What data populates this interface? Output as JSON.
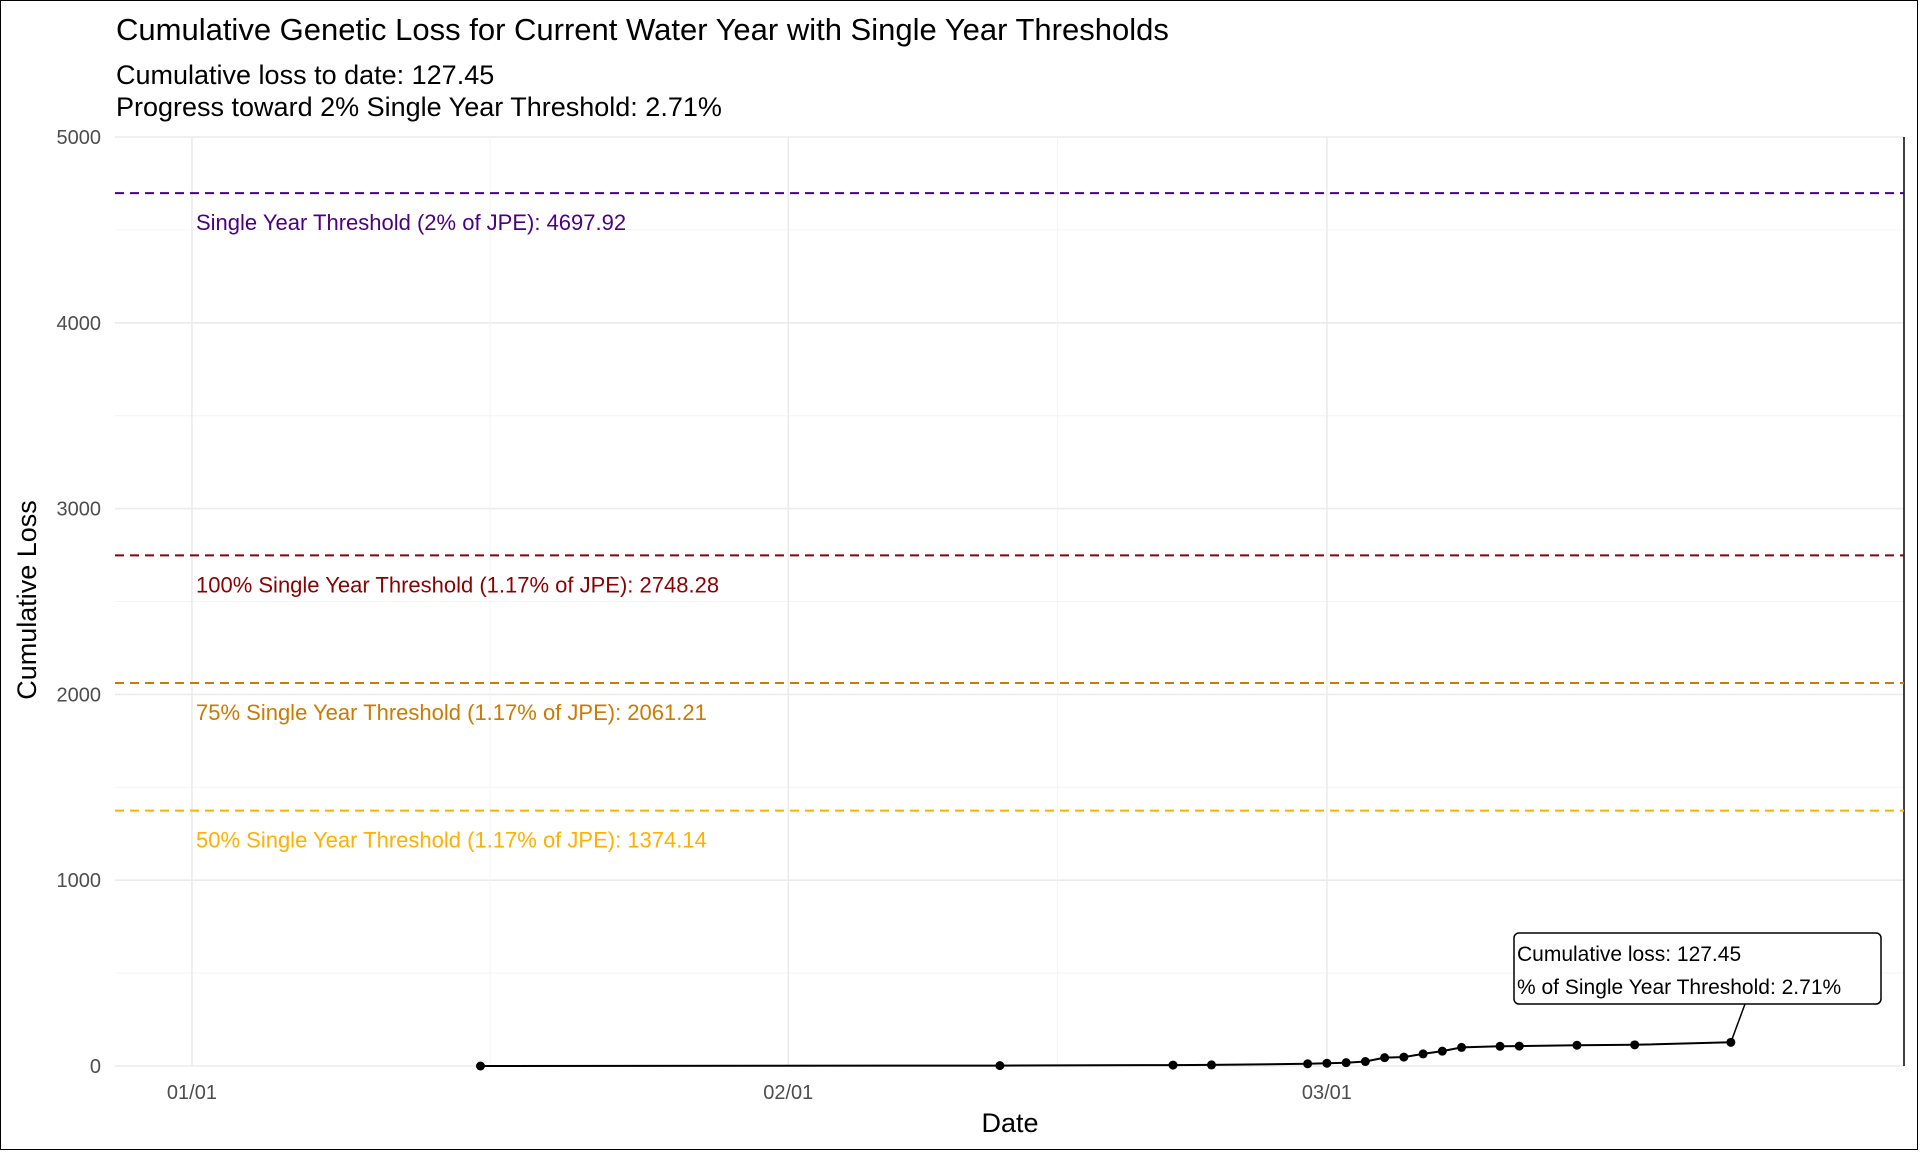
{
  "chart_data": {
    "type": "line",
    "title": "Cumulative Genetic Loss for Current Water Year with Single Year Thresholds",
    "subtitle_lines": [
      "Cumulative loss to date: 127.45",
      "Progress toward 2% Single Year Threshold: 2.71%"
    ],
    "xlabel": "Date",
    "ylabel": "Cumulative Loss",
    "ylim": [
      0,
      5000
    ],
    "xlim": [
      "2025-12-28",
      "2026-03-31"
    ],
    "x_ticks": [
      {
        "date": "2026-01-01",
        "label": "01/01"
      },
      {
        "date": "2026-02-01",
        "label": "02/01"
      },
      {
        "date": "2026-03-01",
        "label": "03/01"
      }
    ],
    "y_ticks": [
      0,
      1000,
      2000,
      3000,
      4000,
      5000
    ],
    "grid": true,
    "series": [
      {
        "points": [
          {
            "x": "2026-01-16",
            "y": 0
          },
          {
            "x": "2026-02-12",
            "y": 2
          },
          {
            "x": "2026-02-21",
            "y": 5
          },
          {
            "x": "2026-02-23",
            "y": 6
          },
          {
            "x": "2026-02-28",
            "y": 12
          },
          {
            "x": "2026-03-01",
            "y": 15
          },
          {
            "x": "2026-03-02",
            "y": 18
          },
          {
            "x": "2026-03-03",
            "y": 24
          },
          {
            "x": "2026-03-04",
            "y": 45
          },
          {
            "x": "2026-03-05",
            "y": 48
          },
          {
            "x": "2026-03-06",
            "y": 65
          },
          {
            "x": "2026-03-07",
            "y": 80
          },
          {
            "x": "2026-03-08",
            "y": 100
          },
          {
            "x": "2026-03-10",
            "y": 106
          },
          {
            "x": "2026-03-11",
            "y": 107
          },
          {
            "x": "2026-03-14",
            "y": 112
          },
          {
            "x": "2026-03-17",
            "y": 114
          },
          {
            "x": "2026-03-22",
            "y": 127.45
          }
        ],
        "color": "#000000"
      }
    ],
    "thresholds": [
      {
        "value": 4697.92,
        "label": "Single Year Threshold (2% of JPE): 4697.92",
        "color": "#4B0082"
      },
      {
        "value": 2748.28,
        "label": "100% Single Year Threshold (1.17% of JPE): 2748.28",
        "color": "#8B0000"
      },
      {
        "value": 2061.21,
        "label": "75% Single Year Threshold (1.17% of JPE): 2061.21",
        "color": "#CC7A00"
      },
      {
        "value": 1374.14,
        "label": "50% Single Year Threshold (1.17% of JPE): 1374.14",
        "color": "#FFB000"
      }
    ],
    "annotation": {
      "lines": [
        "Cumulative loss: 127.45",
        "% of Single Year Threshold: 2.71%"
      ],
      "x": "2026-03-22",
      "y": 127.45
    }
  }
}
